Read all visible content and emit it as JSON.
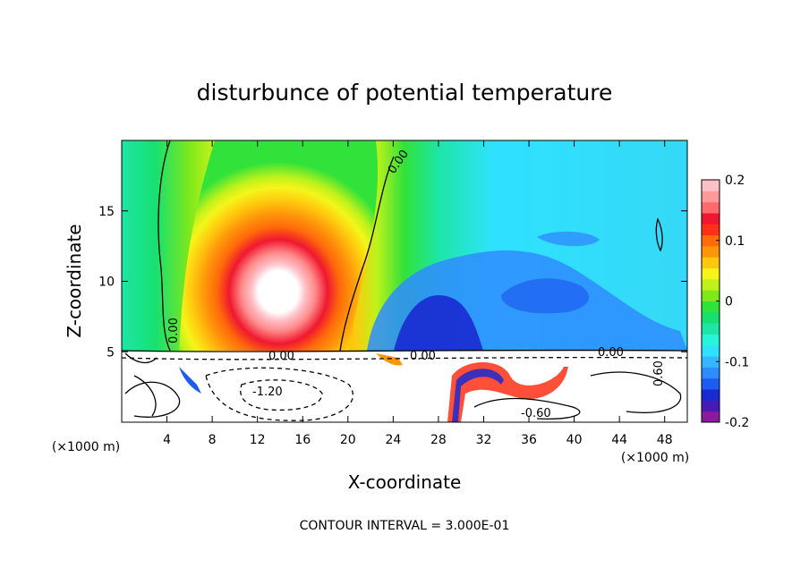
{
  "chart_data": {
    "type": "heatmap",
    "title": "disturbunce of potential temperature",
    "xlabel": "X-coordinate",
    "ylabel": "Z-coordinate",
    "x_unit": "(×1000 m)",
    "z_unit": "(×1000 m)",
    "xlim": [
      0,
      50
    ],
    "ylim": [
      0,
      20
    ],
    "x_ticks": [
      4,
      8,
      12,
      16,
      20,
      24,
      28,
      32,
      36,
      40,
      44,
      48
    ],
    "y_ticks": [
      5,
      10,
      15
    ],
    "colorbar": {
      "min": -0.2,
      "max": 0.2,
      "tick_labels": [
        "0.2",
        "0.1",
        "0",
        "-0.1",
        "-0.2"
      ],
      "tick_values": [
        0.2,
        0.1,
        0,
        -0.1,
        -0.2
      ],
      "colors": [
        "#8b1a9e",
        "#4a1ab4",
        "#1a2ad2",
        "#1c5cf0",
        "#2f8cff",
        "#35b6ff",
        "#2ee2ff",
        "#27f5d8",
        "#1de6a6",
        "#18e070",
        "#30e23a",
        "#7ee81a",
        "#bff21a",
        "#f5f51a",
        "#ffc80e",
        "#ff960a",
        "#ff6a0a",
        "#ff3016",
        "#f01830",
        "#ff6a6a",
        "#ff9a9a",
        "#ffc0c8"
      ]
    },
    "contour_labels": [
      "0.00",
      "0.00",
      "0.00",
      "0.00",
      "0.00",
      "-1.20",
      "-0.60",
      "0.60"
    ],
    "contour_interval_text": "CONTOUR INTERVAL = 3.000E-01"
  }
}
